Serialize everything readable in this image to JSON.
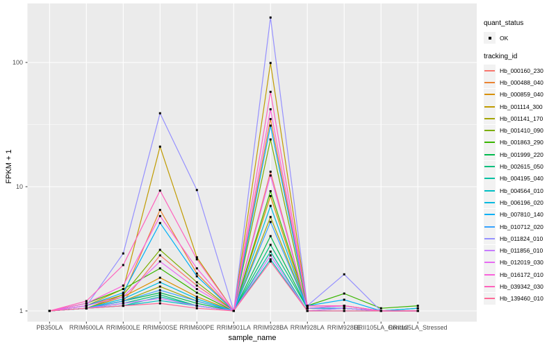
{
  "figure": {
    "background": "#FFFFFF",
    "panel_bg": "#EBEBEB",
    "grid_color": "#FFFFFF",
    "point_color": "#000000",
    "tick_color": "#333333",
    "axis_text_color": "#4D4D4D"
  },
  "legend": {
    "quant_status_title": "quant_status",
    "quant_status_items": [
      {
        "label": "OK",
        "symbol": "black-point"
      }
    ],
    "tracking_id_title": "tracking_id"
  },
  "chart_data": {
    "type": "line",
    "title": "",
    "xlabel": "sample_name",
    "ylabel": "FPKM + 1",
    "y_scale": "log10",
    "ylim": [
      1,
      250
    ],
    "grid": true,
    "legend_position": "right",
    "y_major_ticks": [
      1,
      10,
      100
    ],
    "y_tick_labels": [
      "1",
      "10",
      "100"
    ],
    "categories": [
      "PB350LA",
      "RRIM600LA",
      "RRIM600LE",
      "RRIM600SE",
      "RRIM600PE",
      "RRIM901LA",
      "RRIM928BA",
      "RRIM928LA",
      "RRIM928LE",
      "RRII105LA_Control",
      "RRII105LA_Stressed"
    ],
    "series": [
      {
        "name": "Hb_000160_230",
        "color": "#F8766D",
        "values": [
          1,
          1.05,
          1.2,
          2.8,
          1.6,
          1,
          13.2,
          1.05,
          1.05,
          1,
          1
        ]
      },
      {
        "name": "Hb_000488_040",
        "color": "#EA8331",
        "values": [
          1,
          1.1,
          1.35,
          6.5,
          2.0,
          1,
          35,
          1.1,
          1.1,
          1,
          1
        ]
      },
      {
        "name": "Hb_000859_040",
        "color": "#D89000",
        "values": [
          1,
          1.05,
          1.3,
          1.85,
          1.3,
          1,
          8.4,
          1.05,
          1.05,
          1,
          1
        ]
      },
      {
        "name": "Hb_001114_300",
        "color": "#C09B00",
        "values": [
          1,
          1.1,
          1.5,
          21,
          2.7,
          1,
          99,
          1.1,
          1.1,
          1,
          1
        ]
      },
      {
        "name": "Hb_001141_170",
        "color": "#A3A500",
        "values": [
          1,
          1.05,
          1.2,
          1.57,
          1.2,
          1,
          5.7,
          1.05,
          1.05,
          1,
          1
        ]
      },
      {
        "name": "Hb_001410_090",
        "color": "#7CAE00",
        "values": [
          1,
          1.05,
          1.35,
          3.1,
          1.7,
          1,
          24,
          1.05,
          1.05,
          1,
          1
        ]
      },
      {
        "name": "Hb_001863_290",
        "color": "#39B600",
        "values": [
          1,
          1.15,
          1.5,
          2.2,
          1.4,
          1,
          9.2,
          1.1,
          1.38,
          1.05,
          1.1
        ]
      },
      {
        "name": "Hb_001999_220",
        "color": "#00BB4E",
        "values": [
          1,
          1.05,
          1.2,
          1.4,
          1.15,
          1,
          4.0,
          1.05,
          1.05,
          1,
          1.05
        ]
      },
      {
        "name": "Hb_002615_050",
        "color": "#00BF7D",
        "values": [
          1,
          1.05,
          1.15,
          1.35,
          1.1,
          1,
          3.4,
          1.05,
          1.05,
          1,
          1
        ]
      },
      {
        "name": "Hb_004195_040",
        "color": "#00C1A3",
        "values": [
          1,
          1.05,
          1.1,
          1.3,
          1.1,
          1,
          3.0,
          1,
          1.05,
          1,
          1
        ]
      },
      {
        "name": "Hb_004564_010",
        "color": "#00BFC4",
        "values": [
          1,
          1.05,
          1.1,
          1.21,
          1.1,
          1,
          2.6,
          1,
          1,
          1,
          1
        ]
      },
      {
        "name": "Hb_006196_020",
        "color": "#00BAE0",
        "values": [
          1,
          1.05,
          1.25,
          1.7,
          1.25,
          1,
          7.0,
          1.05,
          1.1,
          1,
          1
        ]
      },
      {
        "name": "Hb_007810_140",
        "color": "#00B0F6",
        "values": [
          1,
          1.1,
          1.4,
          5.1,
          1.9,
          1,
          31,
          1.1,
          1.23,
          1,
          1.05
        ]
      },
      {
        "name": "Hb_010712_020",
        "color": "#35A2FF",
        "values": [
          1,
          1.05,
          1.2,
          1.47,
          1.2,
          1,
          5.2,
          1.05,
          1.05,
          1,
          1
        ]
      },
      {
        "name": "Hb_011824_010",
        "color": "#9590FF",
        "values": [
          1,
          1.1,
          2.9,
          39,
          9.4,
          1,
          230,
          1.1,
          1.97,
          1,
          1
        ]
      },
      {
        "name": "Hb_011856_010",
        "color": "#C77CFF",
        "values": [
          1,
          1.05,
          1.15,
          1.26,
          1.1,
          1,
          2.8,
          1,
          1.05,
          1,
          1
        ]
      },
      {
        "name": "Hb_012019_030",
        "color": "#E76BF3",
        "values": [
          1,
          1.1,
          1.3,
          2.5,
          1.5,
          1,
          12.3,
          1.05,
          1.1,
          1,
          1
        ]
      },
      {
        "name": "Hb_016172_010",
        "color": "#FA62DB",
        "values": [
          1,
          1.15,
          1.6,
          5.8,
          2.2,
          1,
          42,
          1.1,
          1.1,
          1,
          1
        ]
      },
      {
        "name": "Hb_039342_030",
        "color": "#FF62BC",
        "values": [
          1,
          1.2,
          2.34,
          9.3,
          2.6,
          1,
          58,
          1.1,
          1.1,
          1,
          1
        ]
      },
      {
        "name": "Hb_139460_010",
        "color": "#FF6A98",
        "values": [
          1,
          1.05,
          1.1,
          1.15,
          1.05,
          1,
          2.5,
          1,
          1,
          1,
          1
        ]
      }
    ]
  }
}
